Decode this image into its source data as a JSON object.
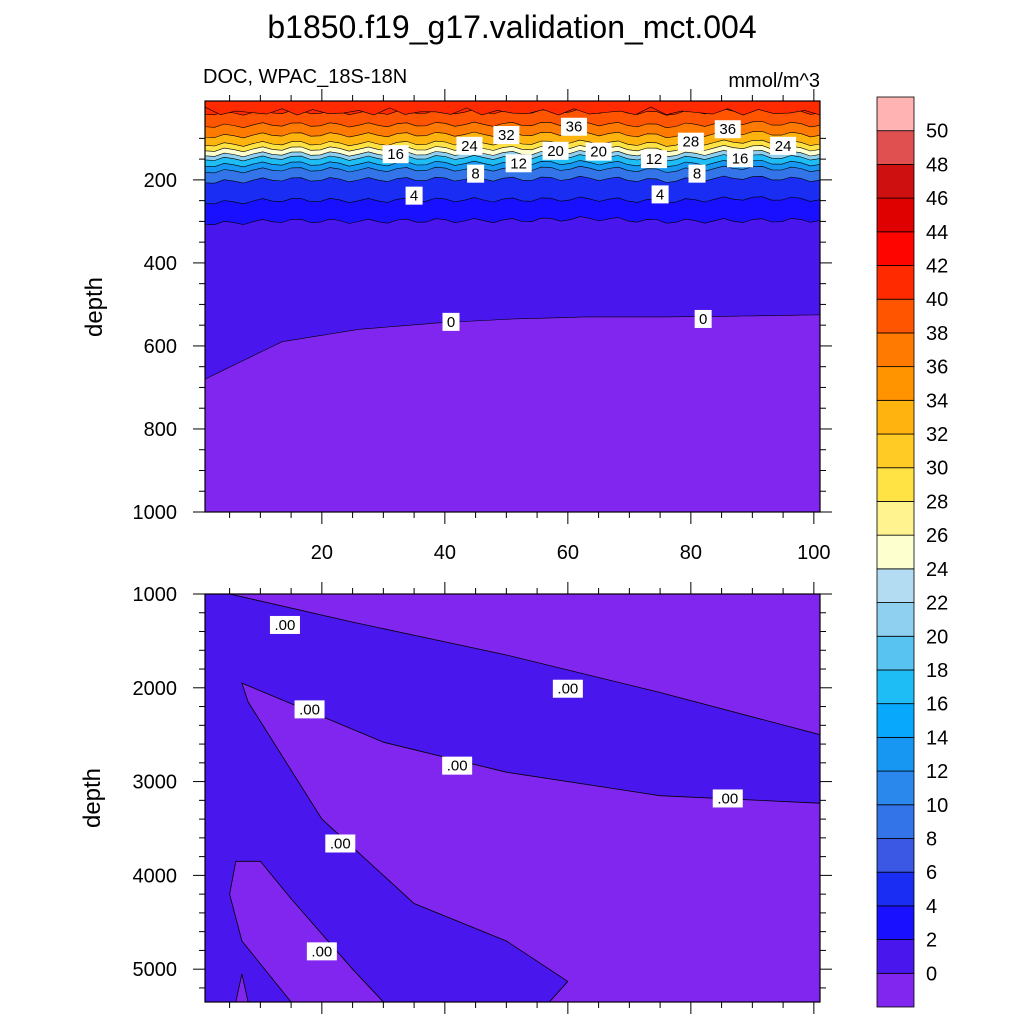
{
  "title": "b1850.f19_g17.validation_mct.004",
  "left_subtitle": "DOC, WPAC_18S-18N",
  "right_subtitle": "mmol/m^3",
  "colorbar": {
    "levels": [
      0,
      2,
      4,
      6,
      8,
      10,
      12,
      14,
      16,
      18,
      20,
      22,
      24,
      26,
      28,
      30,
      32,
      34,
      36,
      38,
      40,
      42,
      44,
      46,
      48,
      50
    ],
    "colors": [
      "#8126ee",
      "#4a16ee",
      "#1810ff",
      "#1a2ef3",
      "#3a58e3",
      "#3375e8",
      "#2a87ec",
      "#1797f2",
      "#08a8fd",
      "#1ebdf5",
      "#58c3f1",
      "#8fcff0",
      "#b3dcf3",
      "#fdffcf",
      "#fff390",
      "#ffe244",
      "#ffcb24",
      "#ffb30f",
      "#ff9300",
      "#ff7a00",
      "#ff5500",
      "#ff2a00",
      "#ff0500",
      "#df0000",
      "#cf1010",
      "#e05050",
      "#ffb3b3"
    ]
  },
  "chart_data": [
    {
      "type": "heatmap",
      "name": "upper",
      "xlim": [
        1,
        101
      ],
      "ylim": [
        1000,
        10
      ],
      "xticks": [
        20,
        40,
        60,
        80,
        100
      ],
      "yticks": [
        200,
        400,
        600,
        800,
        1000
      ],
      "ylabel": "depth",
      "xlabel": "",
      "surface_band_depth": 10,
      "isotherms": [
        {
          "level": 0,
          "depths": [
            680,
            590,
            560,
            545,
            535,
            530,
            530,
            528,
            525
          ]
        },
        {
          "level": 2,
          "depths": [
            305,
            300,
            298,
            300,
            296,
            295,
            298,
            300,
            295
          ]
        },
        {
          "level": 4,
          "depths": [
            255,
            250,
            248,
            250,
            246,
            248,
            250,
            246,
            245
          ]
        },
        {
          "level": 8,
          "depths": [
            205,
            200,
            198,
            200,
            196,
            198,
            200,
            196,
            198
          ]
        },
        {
          "level": 12,
          "depths": [
            180,
            176,
            174,
            176,
            172,
            174,
            176,
            172,
            174
          ]
        },
        {
          "level": 16,
          "depths": [
            165,
            162,
            160,
            162,
            158,
            160,
            162,
            158,
            160
          ]
        },
        {
          "level": 20,
          "depths": [
            150,
            148,
            146,
            148,
            144,
            146,
            148,
            144,
            146
          ]
        },
        {
          "level": 24,
          "depths": [
            140,
            138,
            136,
            138,
            134,
            136,
            138,
            134,
            136
          ]
        },
        {
          "level": 28,
          "depths": [
            128,
            126,
            124,
            126,
            122,
            124,
            126,
            122,
            124
          ]
        },
        {
          "level": 32,
          "depths": [
            115,
            113,
            111,
            113,
            109,
            111,
            113,
            109,
            111
          ]
        },
        {
          "level": 36,
          "depths": [
            95,
            92,
            90,
            92,
            88,
            90,
            92,
            88,
            90
          ]
        },
        {
          "level": 38,
          "depths": [
            70,
            68,
            66,
            68,
            64,
            66,
            68,
            64,
            66
          ]
        },
        {
          "level": 40,
          "depths": [
            40,
            38,
            36,
            38,
            34,
            36,
            38,
            34,
            36
          ]
        }
      ],
      "contour_labels": [
        {
          "text": "36",
          "x": 61,
          "depth": 72
        },
        {
          "text": "36",
          "x": 86,
          "depth": 78
        },
        {
          "text": "32",
          "x": 50,
          "depth": 92
        },
        {
          "text": "28",
          "x": 80,
          "depth": 108
        },
        {
          "text": "24",
          "x": 44,
          "depth": 118
        },
        {
          "text": "24",
          "x": 95,
          "depth": 118
        },
        {
          "text": "20",
          "x": 58,
          "depth": 130
        },
        {
          "text": "20",
          "x": 65,
          "depth": 132
        },
        {
          "text": "16",
          "x": 32,
          "depth": 138
        },
        {
          "text": "16",
          "x": 88,
          "depth": 148
        },
        {
          "text": "12",
          "x": 52,
          "depth": 160
        },
        {
          "text": "12",
          "x": 74,
          "depth": 150
        },
        {
          "text": "8",
          "x": 45,
          "depth": 185
        },
        {
          "text": "8",
          "x": 81,
          "depth": 185
        },
        {
          "text": "4",
          "x": 35,
          "depth": 238
        },
        {
          "text": "4",
          "x": 75,
          "depth": 235
        },
        {
          "text": "0",
          "x": 41,
          "depth": 542
        },
        {
          "text": "0",
          "x": 82,
          "depth": 535
        }
      ]
    },
    {
      "type": "heatmap",
      "name": "lower",
      "xlim": [
        1,
        101
      ],
      "ylim": [
        5350,
        1000
      ],
      "xticks": [
        20,
        40,
        60,
        80,
        100
      ],
      "yticks": [
        1000,
        2000,
        3000,
        4000,
        5000
      ],
      "ylabel": "depth",
      "xlabel": "",
      "regions": [
        {
          "value_class": 0,
          "polygon": [
            [
              1,
              1000
            ],
            [
              101,
              1000
            ],
            [
              101,
              5350
            ],
            [
              1,
              5350
            ]
          ]
        },
        {
          "value_class": 1,
          "polygon": [
            [
              1,
              1000
            ],
            [
              5,
              1000
            ],
            [
              25,
              1300
            ],
            [
              50,
              1650
            ],
            [
              75,
              2050
            ],
            [
              101,
              2500
            ],
            [
              101,
              3230
            ],
            [
              75,
              3150
            ],
            [
              50,
              2900
            ],
            [
              30,
              2580
            ],
            [
              7,
              1950
            ],
            [
              8,
              2150
            ],
            [
              20,
              3400
            ],
            [
              35,
              4300
            ],
            [
              50,
              4700
            ],
            [
              60,
              5130
            ],
            [
              57,
              5350
            ],
            [
              1,
              5350
            ]
          ]
        },
        {
          "value_class": 0,
          "polygon": [
            [
              6,
              3850
            ],
            [
              10,
              3850
            ],
            [
              15,
              4250
            ],
            [
              25,
              5000
            ],
            [
              30,
              5350
            ],
            [
              15,
              5350
            ],
            [
              7,
              4700
            ],
            [
              5,
              4200
            ]
          ]
        },
        {
          "value_class": 0,
          "polygon": [
            [
              7,
              5050
            ],
            [
              8,
              5350
            ],
            [
              6,
              5350
            ]
          ]
        }
      ],
      "contour_labels": [
        {
          "text": ".00",
          "x": 14,
          "depth": 1330
        },
        {
          "text": ".00",
          "x": 18,
          "depth": 2230
        },
        {
          "text": ".00",
          "x": 42,
          "depth": 2830
        },
        {
          "text": ".00",
          "x": 60,
          "depth": 2010
        },
        {
          "text": ".00",
          "x": 86,
          "depth": 3180
        },
        {
          "text": ".00",
          "x": 23,
          "depth": 3660
        },
        {
          "text": ".00",
          "x": 20,
          "depth": 4810
        }
      ]
    }
  ]
}
